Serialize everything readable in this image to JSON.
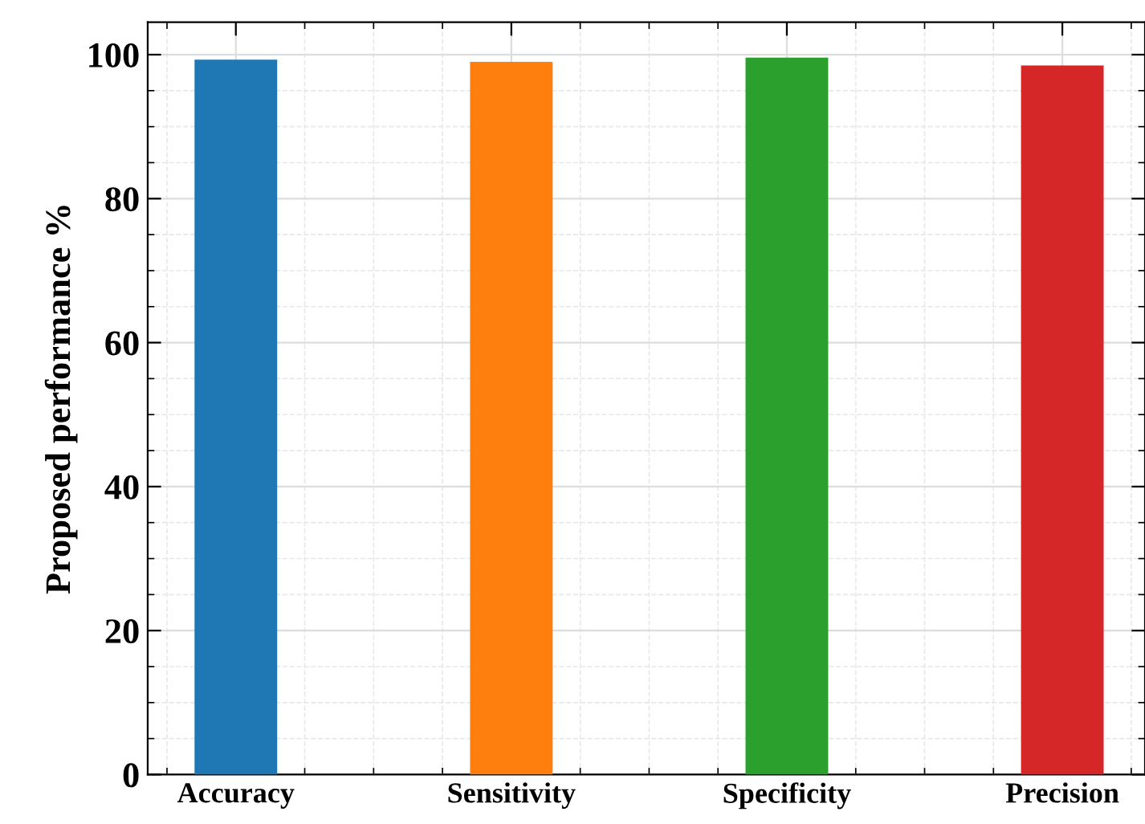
{
  "chart_data": {
    "type": "bar",
    "ylabel": "Proposed performance %",
    "categories": [
      "Accuracy",
      "Sensitivity",
      "Specificity",
      "Precision"
    ],
    "values": [
      99.3,
      99.0,
      99.6,
      98.5
    ],
    "colors": [
      "#1f77b4",
      "#ff7f0e",
      "#2ca02c",
      "#d62728"
    ],
    "ylim": [
      0,
      104.5
    ],
    "yticks": [
      0,
      20,
      40,
      60,
      80,
      100
    ],
    "grid": true
  }
}
